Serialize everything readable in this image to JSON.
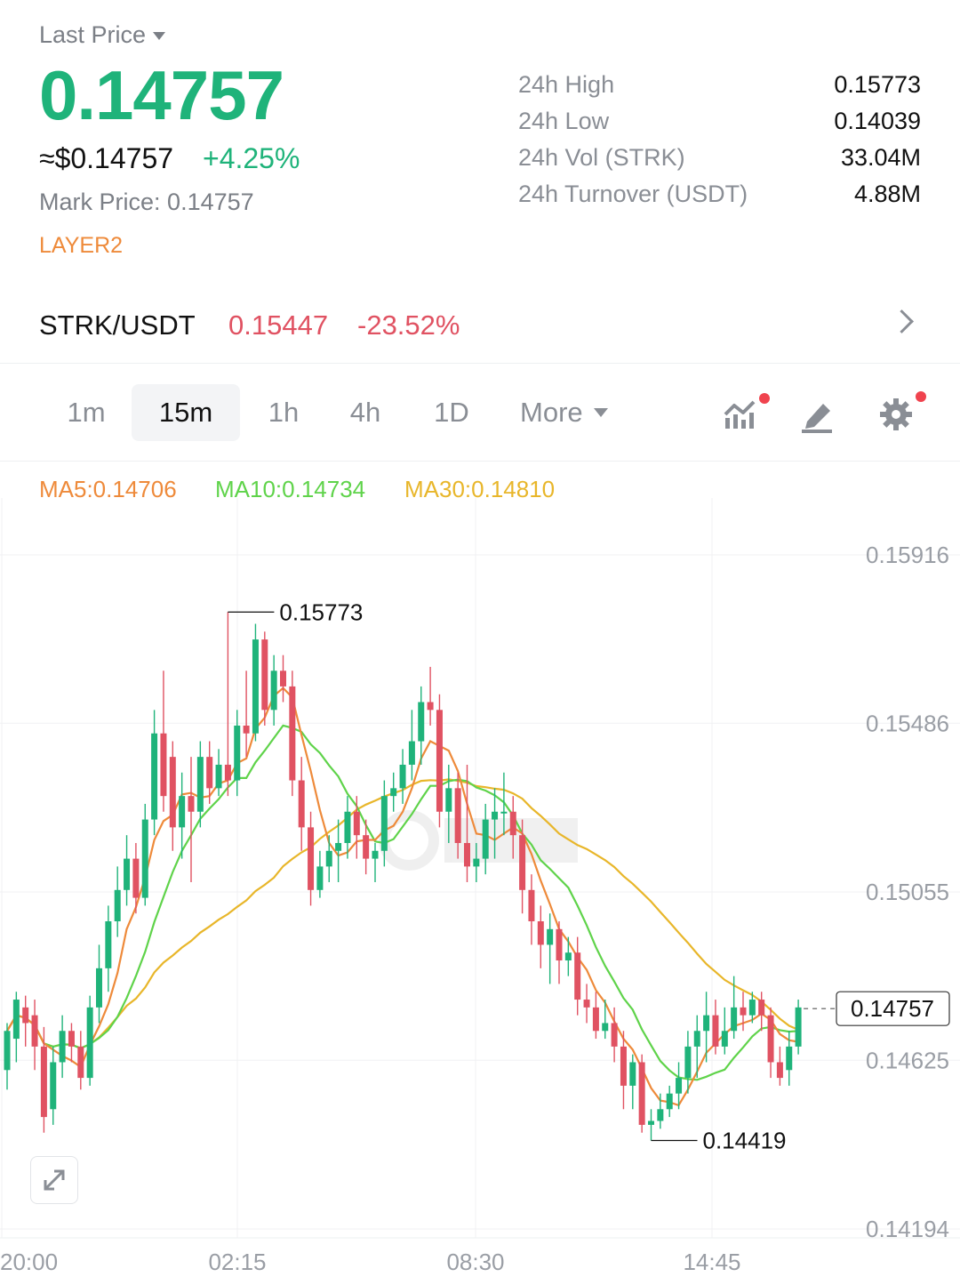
{
  "header": {
    "price_type_label": "Last Price",
    "last_price": "0.14757",
    "usd_price": "≈$0.14757",
    "change_pct": "+4.25%",
    "mark_price_label": "Mark Price:",
    "mark_price_value": "0.14757",
    "tag": "LAYER2"
  },
  "stats": [
    {
      "label": "24h High",
      "value": "0.15773"
    },
    {
      "label": "24h Low",
      "value": "0.14039"
    },
    {
      "label": "24h Vol (STRK)",
      "value": "33.04M"
    },
    {
      "label": "24h Turnover (USDT)",
      "value": "4.88M"
    }
  ],
  "pair": {
    "name": "STRK/USDT",
    "price": "0.15447",
    "change": "-23.52%"
  },
  "intervals": {
    "tabs": [
      "1m",
      "15m",
      "1h",
      "4h",
      "1D"
    ],
    "active": "15m",
    "more_label": "More"
  },
  "toolbar_icons": [
    "indicator-icon",
    "draw-icon",
    "settings-icon"
  ],
  "colors": {
    "up": "#1fb37a",
    "down": "#e05262",
    "ma5": "#ee8a3a",
    "ma10": "#5fd34a",
    "ma30": "#e8b62a"
  },
  "ma_legend": {
    "ma5": "MA5:0.14706",
    "ma10": "MA10:0.14734",
    "ma30": "MA30:0.14810"
  },
  "chart_data": {
    "type": "candlestick",
    "y_ticks": [
      "0.15916",
      "0.15486",
      "0.15055",
      "0.14625",
      "0.14194"
    ],
    "ylim": [
      0.14194,
      0.15916
    ],
    "x_ticks": [
      "20:00",
      "02:15",
      "08:30",
      "14:45"
    ],
    "high_marker": "0.15773",
    "low_marker": "0.14419",
    "current_price_label": "0.14757",
    "current_price": 0.14757,
    "grid": true,
    "candles": [
      {
        "o": 0.146,
        "c": 0.147,
        "h": 0.1472,
        "l": 0.1455
      },
      {
        "o": 0.1468,
        "c": 0.1478,
        "h": 0.148,
        "l": 0.1462
      },
      {
        "o": 0.1476,
        "c": 0.1472,
        "h": 0.1479,
        "l": 0.1466
      },
      {
        "o": 0.1474,
        "c": 0.1466,
        "h": 0.1478,
        "l": 0.146
      },
      {
        "o": 0.1466,
        "c": 0.1448,
        "h": 0.1471,
        "l": 0.1444
      },
      {
        "o": 0.145,
        "c": 0.1462,
        "h": 0.1466,
        "l": 0.1446
      },
      {
        "o": 0.1462,
        "c": 0.147,
        "h": 0.1474,
        "l": 0.1458
      },
      {
        "o": 0.147,
        "c": 0.1466,
        "h": 0.1472,
        "l": 0.1462
      },
      {
        "o": 0.1466,
        "c": 0.1458,
        "h": 0.147,
        "l": 0.1455
      },
      {
        "o": 0.1458,
        "c": 0.1476,
        "h": 0.1479,
        "l": 0.1456
      },
      {
        "o": 0.1476,
        "c": 0.1486,
        "h": 0.1492,
        "l": 0.1472
      },
      {
        "o": 0.1486,
        "c": 0.1498,
        "h": 0.1502,
        "l": 0.148
      },
      {
        "o": 0.1498,
        "c": 0.1506,
        "h": 0.1512,
        "l": 0.1494
      },
      {
        "o": 0.1506,
        "c": 0.1514,
        "h": 0.152,
        "l": 0.1502
      },
      {
        "o": 0.1514,
        "c": 0.1504,
        "h": 0.1518,
        "l": 0.15
      },
      {
        "o": 0.1504,
        "c": 0.1524,
        "h": 0.1528,
        "l": 0.1502
      },
      {
        "o": 0.1524,
        "c": 0.1546,
        "h": 0.1552,
        "l": 0.152
      },
      {
        "o": 0.1546,
        "c": 0.153,
        "h": 0.1562,
        "l": 0.1526
      },
      {
        "o": 0.154,
        "c": 0.1522,
        "h": 0.1544,
        "l": 0.1516
      },
      {
        "o": 0.1522,
        "c": 0.153,
        "h": 0.1536,
        "l": 0.1514
      },
      {
        "o": 0.153,
        "c": 0.1526,
        "h": 0.154,
        "l": 0.1508
      },
      {
        "o": 0.1526,
        "c": 0.154,
        "h": 0.1544,
        "l": 0.1522
      },
      {
        "o": 0.154,
        "c": 0.1532,
        "h": 0.1544,
        "l": 0.1528
      },
      {
        "o": 0.1532,
        "c": 0.1538,
        "h": 0.1542,
        "l": 0.153
      },
      {
        "o": 0.1538,
        "c": 0.1534,
        "h": 0.1577,
        "l": 0.153
      },
      {
        "o": 0.1534,
        "c": 0.1548,
        "h": 0.1552,
        "l": 0.153
      },
      {
        "o": 0.1548,
        "c": 0.1546,
        "h": 0.1562,
        "l": 0.154
      },
      {
        "o": 0.1546,
        "c": 0.157,
        "h": 0.1574,
        "l": 0.1544
      },
      {
        "o": 0.157,
        "c": 0.1552,
        "h": 0.1572,
        "l": 0.1548
      },
      {
        "o": 0.1552,
        "c": 0.1562,
        "h": 0.1566,
        "l": 0.1548
      },
      {
        "o": 0.1562,
        "c": 0.1558,
        "h": 0.1566,
        "l": 0.1554
      },
      {
        "o": 0.1558,
        "c": 0.1534,
        "h": 0.1562,
        "l": 0.153
      },
      {
        "o": 0.1534,
        "c": 0.1522,
        "h": 0.154,
        "l": 0.1516
      },
      {
        "o": 0.1522,
        "c": 0.1506,
        "h": 0.1526,
        "l": 0.1502
      },
      {
        "o": 0.1506,
        "c": 0.1512,
        "h": 0.1516,
        "l": 0.1504
      },
      {
        "o": 0.1512,
        "c": 0.1516,
        "h": 0.152,
        "l": 0.1508
      },
      {
        "o": 0.1516,
        "c": 0.1518,
        "h": 0.1524,
        "l": 0.1508
      },
      {
        "o": 0.1518,
        "c": 0.1526,
        "h": 0.153,
        "l": 0.1514
      },
      {
        "o": 0.1526,
        "c": 0.152,
        "h": 0.153,
        "l": 0.1514
      },
      {
        "o": 0.152,
        "c": 0.1514,
        "h": 0.1524,
        "l": 0.151
      },
      {
        "o": 0.1514,
        "c": 0.1516,
        "h": 0.1518,
        "l": 0.1508
      },
      {
        "o": 0.1516,
        "c": 0.153,
        "h": 0.1534,
        "l": 0.1512
      },
      {
        "o": 0.153,
        "c": 0.1532,
        "h": 0.1536,
        "l": 0.1526
      },
      {
        "o": 0.1532,
        "c": 0.1538,
        "h": 0.1542,
        "l": 0.1528
      },
      {
        "o": 0.1538,
        "c": 0.1544,
        "h": 0.1552,
        "l": 0.1534
      },
      {
        "o": 0.1544,
        "c": 0.1554,
        "h": 0.1558,
        "l": 0.1538
      },
      {
        "o": 0.1554,
        "c": 0.1552,
        "h": 0.1563,
        "l": 0.1548
      },
      {
        "o": 0.1552,
        "c": 0.1526,
        "h": 0.1556,
        "l": 0.1522
      },
      {
        "o": 0.1526,
        "c": 0.1532,
        "h": 0.1538,
        "l": 0.1518
      },
      {
        "o": 0.1532,
        "c": 0.1518,
        "h": 0.1536,
        "l": 0.1514
      },
      {
        "o": 0.1518,
        "c": 0.1512,
        "h": 0.1538,
        "l": 0.1508
      },
      {
        "o": 0.1512,
        "c": 0.1514,
        "h": 0.1518,
        "l": 0.1508
      },
      {
        "o": 0.1514,
        "c": 0.1524,
        "h": 0.1528,
        "l": 0.151
      },
      {
        "o": 0.1524,
        "c": 0.1526,
        "h": 0.1532,
        "l": 0.1514
      },
      {
        "o": 0.1526,
        "c": 0.1526,
        "h": 0.1536,
        "l": 0.152
      },
      {
        "o": 0.1526,
        "c": 0.152,
        "h": 0.153,
        "l": 0.1514
      },
      {
        "o": 0.152,
        "c": 0.1506,
        "h": 0.1524,
        "l": 0.15
      },
      {
        "o": 0.1506,
        "c": 0.1498,
        "h": 0.151,
        "l": 0.1492
      },
      {
        "o": 0.1498,
        "c": 0.1492,
        "h": 0.1502,
        "l": 0.1486
      },
      {
        "o": 0.1492,
        "c": 0.1496,
        "h": 0.15,
        "l": 0.1482
      },
      {
        "o": 0.1496,
        "c": 0.1488,
        "h": 0.1498,
        "l": 0.1482
      },
      {
        "o": 0.1488,
        "c": 0.149,
        "h": 0.1494,
        "l": 0.1484
      },
      {
        "o": 0.149,
        "c": 0.1478,
        "h": 0.1494,
        "l": 0.1474
      },
      {
        "o": 0.1478,
        "c": 0.1476,
        "h": 0.1482,
        "l": 0.1472
      },
      {
        "o": 0.1476,
        "c": 0.147,
        "h": 0.148,
        "l": 0.1468
      },
      {
        "o": 0.147,
        "c": 0.1472,
        "h": 0.1478,
        "l": 0.1468
      },
      {
        "o": 0.1472,
        "c": 0.1466,
        "h": 0.1476,
        "l": 0.1462
      },
      {
        "o": 0.1466,
        "c": 0.1456,
        "h": 0.147,
        "l": 0.145
      },
      {
        "o": 0.1456,
        "c": 0.1462,
        "h": 0.1464,
        "l": 0.145
      },
      {
        "o": 0.1462,
        "c": 0.1446,
        "h": 0.1464,
        "l": 0.1444
      },
      {
        "o": 0.1446,
        "c": 0.1447,
        "h": 0.145,
        "l": 0.1442
      },
      {
        "o": 0.1447,
        "c": 0.145,
        "h": 0.1454,
        "l": 0.1445
      },
      {
        "o": 0.145,
        "c": 0.1454,
        "h": 0.1456,
        "l": 0.1448
      },
      {
        "o": 0.1454,
        "c": 0.1458,
        "h": 0.1462,
        "l": 0.145
      },
      {
        "o": 0.1458,
        "c": 0.1466,
        "h": 0.147,
        "l": 0.1454
      },
      {
        "o": 0.1466,
        "c": 0.147,
        "h": 0.1474,
        "l": 0.1458
      },
      {
        "o": 0.147,
        "c": 0.1474,
        "h": 0.148,
        "l": 0.1462
      },
      {
        "o": 0.1474,
        "c": 0.1466,
        "h": 0.1478,
        "l": 0.1464
      },
      {
        "o": 0.1466,
        "c": 0.147,
        "h": 0.1476,
        "l": 0.1464
      },
      {
        "o": 0.147,
        "c": 0.1476,
        "h": 0.1484,
        "l": 0.1468
      },
      {
        "o": 0.1476,
        "c": 0.1474,
        "h": 0.148,
        "l": 0.147
      },
      {
        "o": 0.1474,
        "c": 0.1478,
        "h": 0.148,
        "l": 0.1472
      },
      {
        "o": 0.1478,
        "c": 0.1474,
        "h": 0.148,
        "l": 0.147
      },
      {
        "o": 0.1474,
        "c": 0.1462,
        "h": 0.1476,
        "l": 0.1458
      },
      {
        "o": 0.1462,
        "c": 0.1458,
        "h": 0.1466,
        "l": 0.1456
      },
      {
        "o": 0.146,
        "c": 0.1466,
        "h": 0.147,
        "l": 0.1456
      },
      {
        "o": 0.1466,
        "c": 0.1476,
        "h": 0.1478,
        "l": 0.1464
      }
    ]
  }
}
